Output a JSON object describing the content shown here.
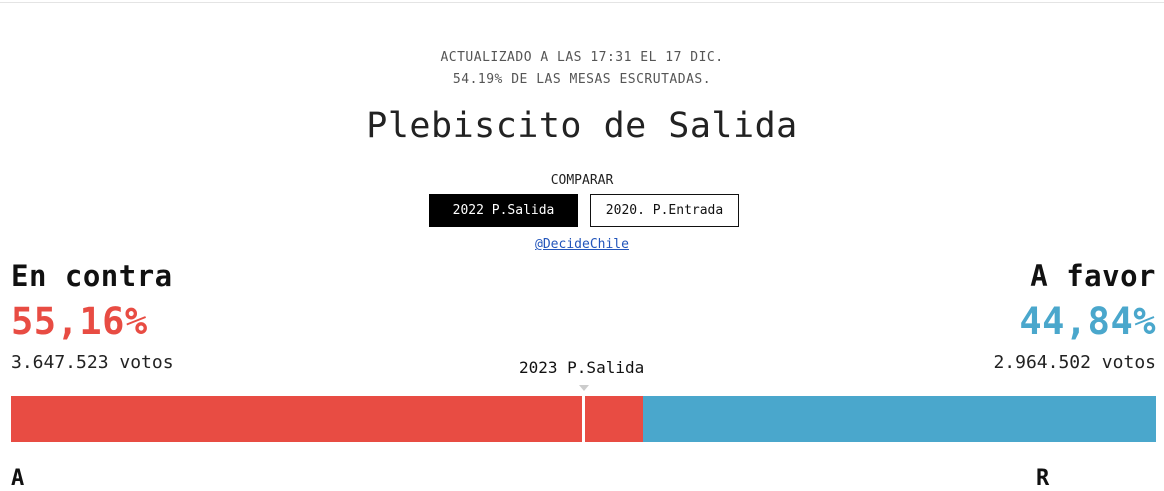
{
  "header": {
    "update_line1": "ACTUALIZADO A LAS 17:31 EL 17 DIC.",
    "update_line2": "54.19% DE LAS MESAS ESCRUTADAS.",
    "title": "Plebiscito de Salida"
  },
  "compare": {
    "label": "COMPARAR",
    "options": [
      {
        "label": "2022 P.Salida",
        "active": true
      },
      {
        "label": "2020. P.Entrada",
        "active": false
      }
    ],
    "source_link": "@DecideChile"
  },
  "results": {
    "against": {
      "label": "En contra",
      "percent": "55,16%",
      "votes": "3.647.523 votos",
      "color": "#e84c43",
      "share": 55.16
    },
    "in_favor": {
      "label": "A favor",
      "percent": "44,84%",
      "votes": "2.964.502 votos",
      "color": "#4aa7cc",
      "share": 44.84
    },
    "reference_marker": {
      "label": "2023 P.Salida",
      "share": 50.0
    }
  },
  "bottom": {
    "left_cut": "A",
    "right_cut": "R"
  }
}
